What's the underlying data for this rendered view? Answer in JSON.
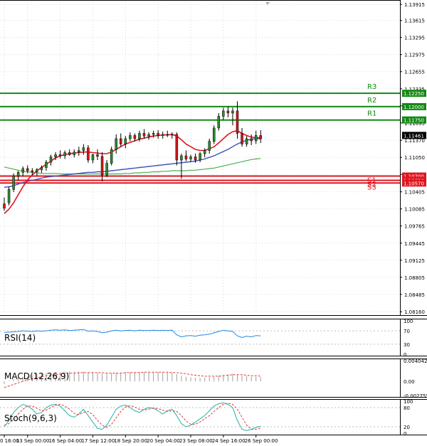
{
  "chart_data": {
    "type": "candlestick",
    "symbol": "EURUSD",
    "price_axis": {
      "min": 1.0811,
      "max": 1.1397,
      "ticks": [
        "1.13915",
        "1.13615",
        "1.13295",
        "1.12975",
        "1.12655",
        "1.12335",
        "1.12015",
        "1.11695",
        "1.11370",
        "1.11050",
        "1.10730",
        "1.10405",
        "1.10085",
        "1.09765",
        "1.09445",
        "1.09125",
        "1.08805",
        "1.08485",
        "1.08160"
      ]
    },
    "levels": [
      {
        "name": "R3",
        "price": 1.1225,
        "label": "1.12250",
        "color": "#138a13"
      },
      {
        "name": "R2",
        "price": 1.12,
        "label": "1.12000",
        "color": "#138a13"
      },
      {
        "name": "R1",
        "price": 1.1175,
        "label": "1.11750",
        "color": "#138a13"
      },
      {
        "name": "S1",
        "price": 1.107,
        "label": "1.10700",
        "color": "#e0141e"
      },
      {
        "name": "S2",
        "price": 1.1062,
        "label": "1.10620",
        "color": "#e0141e"
      },
      {
        "name": "S3",
        "price": 1.1057,
        "label": "1.10570",
        "color": "#e0141e"
      }
    ],
    "current_price": {
      "value": 1.11461,
      "label": "1.11461"
    },
    "candles": [
      {
        "o": 1.1018,
        "h": 1.103,
        "l": 1.1005,
        "c": 1.101
      },
      {
        "o": 1.102,
        "h": 1.105,
        "l": 1.1015,
        "c": 1.1045
      },
      {
        "o": 1.1045,
        "h": 1.1075,
        "l": 1.104,
        "c": 1.107
      },
      {
        "o": 1.107,
        "h": 1.108,
        "l": 1.1062,
        "c": 1.1077
      },
      {
        "o": 1.1077,
        "h": 1.1088,
        "l": 1.107,
        "c": 1.1084
      },
      {
        "o": 1.1084,
        "h": 1.109,
        "l": 1.1075,
        "c": 1.108
      },
      {
        "o": 1.108,
        "h": 1.1085,
        "l": 1.1072,
        "c": 1.1078
      },
      {
        "o": 1.1078,
        "h": 1.1085,
        "l": 1.107,
        "c": 1.1082
      },
      {
        "o": 1.1082,
        "h": 1.109,
        "l": 1.1076,
        "c": 1.1086
      },
      {
        "o": 1.1086,
        "h": 1.11,
        "l": 1.108,
        "c": 1.1096
      },
      {
        "o": 1.1096,
        "h": 1.111,
        "l": 1.109,
        "c": 1.1106
      },
      {
        "o": 1.1106,
        "h": 1.1115,
        "l": 1.11,
        "c": 1.111
      },
      {
        "o": 1.111,
        "h": 1.1118,
        "l": 1.1103,
        "c": 1.1108
      },
      {
        "o": 1.1108,
        "h": 1.1118,
        "l": 1.1102,
        "c": 1.1114
      },
      {
        "o": 1.1114,
        "h": 1.112,
        "l": 1.1108,
        "c": 1.111
      },
      {
        "o": 1.111,
        "h": 1.112,
        "l": 1.1105,
        "c": 1.1115
      },
      {
        "o": 1.1115,
        "h": 1.1125,
        "l": 1.1108,
        "c": 1.1118
      },
      {
        "o": 1.1118,
        "h": 1.113,
        "l": 1.111,
        "c": 1.1123
      },
      {
        "o": 1.1123,
        "h": 1.1128,
        "l": 1.1095,
        "c": 1.11
      },
      {
        "o": 1.11,
        "h": 1.1112,
        "l": 1.1094,
        "c": 1.111
      },
      {
        "o": 1.111,
        "h": 1.112,
        "l": 1.11,
        "c": 1.1107
      },
      {
        "o": 1.1107,
        "h": 1.1115,
        "l": 1.106,
        "c": 1.1072
      },
      {
        "o": 1.1072,
        "h": 1.11,
        "l": 1.1068,
        "c": 1.1094
      },
      {
        "o": 1.1094,
        "h": 1.1125,
        "l": 1.109,
        "c": 1.112
      },
      {
        "o": 1.112,
        "h": 1.1148,
        "l": 1.1112,
        "c": 1.114
      },
      {
        "o": 1.114,
        "h": 1.115,
        "l": 1.1125,
        "c": 1.113
      },
      {
        "o": 1.113,
        "h": 1.1145,
        "l": 1.1122,
        "c": 1.114
      },
      {
        "o": 1.114,
        "h": 1.1152,
        "l": 1.1135,
        "c": 1.1146
      },
      {
        "o": 1.1146,
        "h": 1.115,
        "l": 1.1135,
        "c": 1.114
      },
      {
        "o": 1.114,
        "h": 1.1155,
        "l": 1.1135,
        "c": 1.115
      },
      {
        "o": 1.115,
        "h": 1.1158,
        "l": 1.114,
        "c": 1.1145
      },
      {
        "o": 1.1145,
        "h": 1.1152,
        "l": 1.1138,
        "c": 1.1148
      },
      {
        "o": 1.1148,
        "h": 1.1155,
        "l": 1.1142,
        "c": 1.115
      },
      {
        "o": 1.115,
        "h": 1.1156,
        "l": 1.114,
        "c": 1.1146
      },
      {
        "o": 1.1146,
        "h": 1.1153,
        "l": 1.114,
        "c": 1.1148
      },
      {
        "o": 1.1148,
        "h": 1.1155,
        "l": 1.1143,
        "c": 1.1147
      },
      {
        "o": 1.1147,
        "h": 1.1152,
        "l": 1.114,
        "c": 1.1148
      },
      {
        "o": 1.1148,
        "h": 1.1152,
        "l": 1.109,
        "c": 1.11
      },
      {
        "o": 1.11,
        "h": 1.1112,
        "l": 1.1065,
        "c": 1.1108
      },
      {
        "o": 1.1108,
        "h": 1.1118,
        "l": 1.1098,
        "c": 1.1102
      },
      {
        "o": 1.1102,
        "h": 1.111,
        "l": 1.1096,
        "c": 1.1106
      },
      {
        "o": 1.1106,
        "h": 1.1112,
        "l": 1.1095,
        "c": 1.11
      },
      {
        "o": 1.11,
        "h": 1.1115,
        "l": 1.1096,
        "c": 1.1112
      },
      {
        "o": 1.1112,
        "h": 1.1122,
        "l": 1.1105,
        "c": 1.1118
      },
      {
        "o": 1.1118,
        "h": 1.114,
        "l": 1.1112,
        "c": 1.1135
      },
      {
        "o": 1.1135,
        "h": 1.1165,
        "l": 1.113,
        "c": 1.116
      },
      {
        "o": 1.116,
        "h": 1.1188,
        "l": 1.1155,
        "c": 1.1182
      },
      {
        "o": 1.1182,
        "h": 1.1198,
        "l": 1.1175,
        "c": 1.1192
      },
      {
        "o": 1.1192,
        "h": 1.12,
        "l": 1.118,
        "c": 1.1188
      },
      {
        "o": 1.1188,
        "h": 1.1198,
        "l": 1.1165,
        "c": 1.1192
      },
      {
        "o": 1.1192,
        "h": 1.121,
        "l": 1.114,
        "c": 1.115
      },
      {
        "o": 1.115,
        "h": 1.116,
        "l": 1.1125,
        "c": 1.113
      },
      {
        "o": 1.113,
        "h": 1.1145,
        "l": 1.1125,
        "c": 1.114
      },
      {
        "o": 1.114,
        "h": 1.1148,
        "l": 1.1128,
        "c": 1.1136
      },
      {
        "o": 1.1136,
        "h": 1.1155,
        "l": 1.113,
        "c": 1.1146
      },
      {
        "o": 1.1146,
        "h": 1.1156,
        "l": 1.1132,
        "c": 1.114
      }
    ],
    "red_ma": [
      1.1,
      1.1008,
      1.102,
      1.1035,
      1.105,
      1.1063,
      1.1072,
      1.108,
      1.1086,
      1.1092,
      1.1098,
      1.1104,
      1.1108,
      1.111,
      1.1112,
      1.1113,
      1.1114,
      1.1115,
      1.1115,
      1.1114,
      1.1113,
      1.1112,
      1.1112,
      1.1115,
      1.112,
      1.1125,
      1.113,
      1.1133,
      1.1136,
      1.1139,
      1.1141,
      1.1143,
      1.1145,
      1.1146,
      1.1147,
      1.1147,
      1.1148,
      1.1145,
      1.1138,
      1.113,
      1.1125,
      1.112,
      1.1118,
      1.1118,
      1.1121,
      1.1125,
      1.1132,
      1.114,
      1.1148,
      1.1153,
      1.1155,
      1.115,
      1.1146,
      1.1143,
      1.1142,
      1.1142
    ],
    "blue_ma": [
      1.1049,
      1.105,
      1.1052,
      1.1055,
      1.1058,
      1.106,
      1.1062,
      1.1064,
      1.1066,
      1.1068,
      1.1069,
      1.107,
      1.1071,
      1.1072,
      1.1073,
      1.1074,
      1.1075,
      1.1076,
      1.1077,
      1.1077,
      1.1078,
      1.1078,
      1.1079,
      1.108,
      1.1081,
      1.1082,
      1.1083,
      1.1084,
      1.1085,
      1.1086,
      1.1087,
      1.1088,
      1.1089,
      1.109,
      1.1091,
      1.1092,
      1.1093,
      1.1094,
      1.1095,
      1.1096,
      1.1097,
      1.1098,
      1.11,
      1.1102,
      1.1105,
      1.1108,
      1.1112,
      1.1116,
      1.112,
      1.1125,
      1.113,
      1.1134,
      1.1137,
      1.1139,
      1.114,
      1.114
    ],
    "green_ma": [
      1.1087,
      1.1085,
      1.1083,
      1.1081,
      1.1079,
      1.1078,
      1.1077,
      1.1076,
      1.1075,
      1.1075,
      1.1075,
      1.1075,
      1.1074,
      1.1074,
      1.1074,
      1.1074,
      1.1074,
      1.1074,
      1.1074,
      1.1074,
      1.1074,
      1.1074,
      1.1074,
      1.1074,
      1.1074,
      1.1074,
      1.1075,
      1.1075,
      1.1076,
      1.1076,
      1.1077,
      1.1077,
      1.1078,
      1.1078,
      1.1079,
      1.1079,
      1.108,
      1.108,
      1.108,
      1.108,
      1.1081,
      1.1081,
      1.1082,
      1.1083,
      1.1084,
      1.1085,
      1.1087,
      1.1089,
      1.1091,
      1.1093,
      1.1095,
      1.1097,
      1.1099,
      1.1101,
      1.1102,
      1.1103
    ],
    "x_axis": {
      "labels": [
        "0 16:00",
        "13 Sep 00:00",
        "16 Sep 04:00",
        "17 Sep 12:00",
        "18 Sep 20:00",
        "20 Sep 04:00",
        "23 Sep 08:00",
        "24 Sep 16:00",
        "26 Sep 00:00"
      ],
      "label_index": [
        0,
        5,
        12,
        19,
        26,
        33,
        40,
        47,
        54
      ]
    },
    "rsi": {
      "title": "RSI(14)",
      "range": [
        0,
        100
      ],
      "ticks": [
        "100",
        "70",
        "30",
        "0"
      ],
      "values": [
        65,
        66,
        67,
        68,
        70,
        69,
        68,
        70,
        69,
        70,
        72,
        73,
        72,
        73,
        71,
        72,
        73,
        74,
        69,
        70,
        68,
        64,
        66,
        70,
        72,
        70,
        71,
        72,
        70,
        72,
        71,
        71,
        72,
        71,
        72,
        71,
        72,
        58,
        52,
        55,
        56,
        54,
        57,
        58,
        60,
        64,
        68,
        72,
        70,
        68,
        55,
        50,
        54,
        52,
        56,
        55
      ]
    },
    "macd": {
      "title": "MACD(12,26,9)",
      "ticks": [
        "0.004042",
        "0.00",
        "-0.002755"
      ],
      "range": [
        -0.002755,
        0.004042
      ],
      "histogram": [
        -0.0005,
        0.0001,
        0.0004,
        0.0006,
        0.0009,
        0.0011,
        0.0012,
        0.0014,
        0.0015,
        0.0016,
        0.0017,
        0.0018,
        0.0018,
        0.0019,
        0.0019,
        0.0019,
        0.0019,
        0.0019,
        0.0018,
        0.0018,
        0.0017,
        0.0015,
        0.0015,
        0.0016,
        0.0017,
        0.0017,
        0.0018,
        0.0018,
        0.0018,
        0.0018,
        0.0018,
        0.0018,
        0.0018,
        0.0018,
        0.0018,
        0.0017,
        0.0017,
        0.0014,
        0.0011,
        0.0009,
        0.0008,
        0.0007,
        0.0007,
        0.0007,
        0.0008,
        0.0009,
        0.0011,
        0.0013,
        0.0014,
        0.0015,
        0.0013,
        0.0011,
        0.001,
        0.0009,
        0.0009,
        0.0008
      ],
      "signal": [
        -0.0012,
        -0.0009,
        -0.0006,
        -0.0003,
        0.0,
        0.0003,
        0.0005,
        0.0007,
        0.0009,
        0.0011,
        0.0012,
        0.0013,
        0.0014,
        0.0015,
        0.0016,
        0.0016,
        0.0017,
        0.0017,
        0.0017,
        0.0017,
        0.0017,
        0.0017,
        0.0016,
        0.0016,
        0.0016,
        0.0016,
        0.0017,
        0.0017,
        0.0017,
        0.0017,
        0.0018,
        0.0018,
        0.0018,
        0.0018,
        0.0018,
        0.0018,
        0.0017,
        0.0017,
        0.0016,
        0.0015,
        0.0013,
        0.0012,
        0.0011,
        0.001,
        0.001,
        0.001,
        0.001,
        0.0011,
        0.0012,
        0.0013,
        0.0013,
        0.0013,
        0.0012,
        0.0011,
        0.0011,
        0.001
      ]
    },
    "stoch": {
      "title": "Stoch(9,6,3)",
      "range": [
        0,
        100
      ],
      "ticks": [
        "100",
        "80",
        "20",
        "0"
      ],
      "k": [
        20,
        40,
        65,
        80,
        90,
        85,
        75,
        60,
        65,
        80,
        88,
        90,
        85,
        70,
        55,
        50,
        60,
        75,
        55,
        35,
        15,
        12,
        25,
        50,
        75,
        85,
        88,
        80,
        70,
        65,
        75,
        80,
        78,
        70,
        60,
        70,
        75,
        55,
        30,
        20,
        25,
        35,
        45,
        55,
        70,
        85,
        92,
        95,
        90,
        80,
        40,
        12,
        8,
        12,
        18,
        22
      ],
      "d": [
        25,
        30,
        45,
        60,
        75,
        85,
        85,
        78,
        70,
        72,
        80,
        88,
        90,
        85,
        75,
        62,
        58,
        65,
        68,
        58,
        40,
        25,
        18,
        28,
        48,
        68,
        82,
        86,
        82,
        75,
        72,
        75,
        78,
        77,
        72,
        68,
        70,
        68,
        55,
        38,
        28,
        28,
        35,
        45,
        55,
        68,
        80,
        90,
        94,
        90,
        75,
        50,
        25,
        12,
        12,
        16
      ]
    }
  }
}
